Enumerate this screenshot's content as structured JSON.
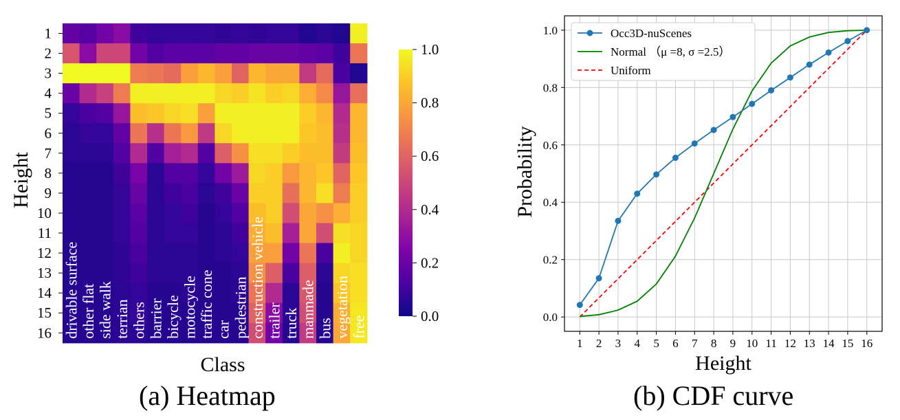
{
  "chart_data": [
    {
      "type": "heatmap",
      "title": "",
      "caption": "(a) Heatmap",
      "xlabel": "Class",
      "ylabel": "Height",
      "row_labels": [
        "1",
        "2",
        "3",
        "4",
        "5",
        "6",
        "7",
        "8",
        "9",
        "10",
        "11",
        "12",
        "13",
        "14",
        "15",
        "16"
      ],
      "col_labels": [
        "drivable surface",
        "other flat",
        "side walk",
        "terrian",
        "others",
        "barrier",
        "bicycle",
        "motocycle",
        "traffic cone",
        "car",
        "pedestrian",
        "construction vehicle",
        "trailer",
        "truck",
        "manmade",
        "bus",
        "vegetation",
        "free"
      ],
      "colorbar": {
        "min": 0.0,
        "max": 1.0,
        "ticks": [
          "0.0",
          "0.2",
          "0.4",
          "0.6",
          "0.8",
          "1.0"
        ],
        "colormap": "plasma"
      },
      "values": [
        [
          0.18,
          0.15,
          0.22,
          0.28,
          0.1,
          0.08,
          0.08,
          0.08,
          0.08,
          0.07,
          0.08,
          0.07,
          0.08,
          0.08,
          0.04,
          0.06,
          0.04,
          0.98
        ],
        [
          0.55,
          0.28,
          0.5,
          0.5,
          0.22,
          0.14,
          0.16,
          0.16,
          0.16,
          0.18,
          0.18,
          0.2,
          0.2,
          0.2,
          0.18,
          0.16,
          0.1,
          0.66
        ],
        [
          1.0,
          1.0,
          1.0,
          1.0,
          0.68,
          0.66,
          0.62,
          0.78,
          0.84,
          0.78,
          0.6,
          0.84,
          0.8,
          0.8,
          0.46,
          0.62,
          0.12,
          0.04
        ],
        [
          0.2,
          0.4,
          0.48,
          0.68,
          0.98,
          0.98,
          0.98,
          0.98,
          0.98,
          0.92,
          0.9,
          0.95,
          0.9,
          0.92,
          0.82,
          0.72,
          0.32,
          0.64
        ],
        [
          0.08,
          0.12,
          0.14,
          0.32,
          0.86,
          0.88,
          0.92,
          0.94,
          0.78,
          0.98,
          0.98,
          0.98,
          0.98,
          0.98,
          0.9,
          0.84,
          0.4,
          0.84
        ],
        [
          0.06,
          0.08,
          0.08,
          0.18,
          0.66,
          0.42,
          0.66,
          0.76,
          0.45,
          0.92,
          0.98,
          0.98,
          0.98,
          0.98,
          0.88,
          0.86,
          0.42,
          0.84
        ],
        [
          0.06,
          0.06,
          0.06,
          0.14,
          0.4,
          0.14,
          0.36,
          0.4,
          0.14,
          0.58,
          0.74,
          0.94,
          0.94,
          0.9,
          0.86,
          0.86,
          0.46,
          0.86
        ],
        [
          0.05,
          0.05,
          0.05,
          0.1,
          0.24,
          0.06,
          0.14,
          0.14,
          0.08,
          0.22,
          0.34,
          0.92,
          0.9,
          0.76,
          0.84,
          0.88,
          0.6,
          0.88
        ],
        [
          0.05,
          0.05,
          0.05,
          0.08,
          0.2,
          0.06,
          0.1,
          0.12,
          0.06,
          0.1,
          0.2,
          0.9,
          0.9,
          0.64,
          0.84,
          0.94,
          0.68,
          0.9
        ],
        [
          0.05,
          0.05,
          0.05,
          0.08,
          0.16,
          0.06,
          0.08,
          0.1,
          0.05,
          0.08,
          0.14,
          0.86,
          0.9,
          0.52,
          0.8,
          0.74,
          0.82,
          0.9
        ],
        [
          0.05,
          0.05,
          0.05,
          0.08,
          0.14,
          0.06,
          0.08,
          0.08,
          0.05,
          0.06,
          0.1,
          0.82,
          0.86,
          0.36,
          0.8,
          0.52,
          0.94,
          0.92
        ],
        [
          0.05,
          0.05,
          0.05,
          0.07,
          0.12,
          0.06,
          0.06,
          0.06,
          0.05,
          0.06,
          0.08,
          0.78,
          0.78,
          0.22,
          0.66,
          0.12,
          0.98,
          0.92
        ],
        [
          0.05,
          0.05,
          0.05,
          0.07,
          0.1,
          0.06,
          0.06,
          0.06,
          0.05,
          0.05,
          0.06,
          0.74,
          0.58,
          0.12,
          0.58,
          0.06,
          0.92,
          0.94
        ],
        [
          0.05,
          0.05,
          0.05,
          0.06,
          0.08,
          0.05,
          0.05,
          0.06,
          0.05,
          0.05,
          0.06,
          0.66,
          0.4,
          0.06,
          0.56,
          0.05,
          0.88,
          0.94
        ],
        [
          0.05,
          0.05,
          0.05,
          0.06,
          0.08,
          0.05,
          0.05,
          0.05,
          0.05,
          0.05,
          0.05,
          0.6,
          0.28,
          0.06,
          0.52,
          0.05,
          0.82,
          0.96
        ],
        [
          0.05,
          0.05,
          0.05,
          0.06,
          0.06,
          0.05,
          0.05,
          0.05,
          0.05,
          0.05,
          0.05,
          0.52,
          0.22,
          0.05,
          0.46,
          0.05,
          0.8,
          0.96
        ]
      ]
    },
    {
      "type": "line",
      "title": "",
      "caption": "(b) CDF curve",
      "xlabel": "Height",
      "ylabel": "Probability",
      "xlim": [
        0.2,
        16.8
      ],
      "ylim": [
        -0.05,
        1.05
      ],
      "xticks": [
        "1",
        "2",
        "3",
        "4",
        "5",
        "6",
        "7",
        "8",
        "9",
        "10",
        "11",
        "12",
        "13",
        "14",
        "15",
        "16"
      ],
      "yticks": [
        "0.0",
        "0.2",
        "0.4",
        "0.6",
        "0.8",
        "1.0"
      ],
      "grid": true,
      "legend_position": "top-left",
      "x": [
        1,
        2,
        3,
        4,
        5,
        6,
        7,
        8,
        9,
        10,
        11,
        12,
        13,
        14,
        15,
        16
      ],
      "series": [
        {
          "name": "Occ3D-nuScenes",
          "style": "line-marker",
          "color": "#1f77b4",
          "values": [
            0.042,
            0.135,
            0.335,
            0.43,
            0.497,
            0.555,
            0.605,
            0.652,
            0.697,
            0.743,
            0.79,
            0.835,
            0.88,
            0.922,
            0.962,
            1.0
          ]
        },
        {
          "name": "Normal （μ =8, σ =2.5）",
          "style": "line",
          "color": "#008000",
          "values": [
            0.002,
            0.008,
            0.024,
            0.055,
            0.115,
            0.212,
            0.345,
            0.5,
            0.655,
            0.788,
            0.885,
            0.945,
            0.976,
            0.992,
            0.998,
            1.0
          ]
        },
        {
          "name": "Uniform",
          "style": "dashed",
          "color": "#ff0000",
          "values": [
            0.0,
            0.0667,
            0.1333,
            0.2,
            0.2667,
            0.3333,
            0.4,
            0.4667,
            0.5333,
            0.6,
            0.6667,
            0.7333,
            0.8,
            0.8667,
            0.9333,
            1.0
          ]
        }
      ]
    }
  ]
}
